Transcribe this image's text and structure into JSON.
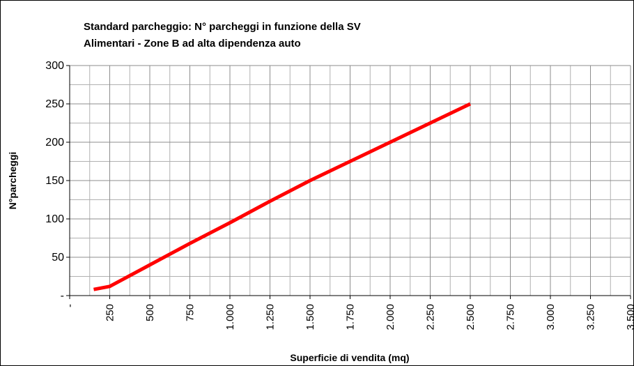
{
  "chart_data": {
    "type": "line",
    "title": "Standard parcheggio: N° parcheggi in funzione della SV",
    "subtitle": "Alimentari - Zone B ad alta dipendenza auto",
    "xlabel": "Superficie di vendita (mq)",
    "ylabel": "N°parcheggi",
    "x": [
      150,
      250,
      500,
      750,
      1000,
      1250,
      1500,
      1750,
      2000,
      2250,
      2500
    ],
    "series": [
      {
        "name": "N°parcheggi",
        "color": "#ff0000",
        "values": [
          8,
          12,
          40,
          68,
          95,
          123,
          150,
          175,
          200,
          225,
          250
        ]
      }
    ],
    "xlim": [
      0,
      3500
    ],
    "xticks": [
      {
        "value": 0,
        "label": "-"
      },
      250,
      500,
      750,
      {
        "value": 1000,
        "label": "1.000"
      },
      {
        "value": 1250,
        "label": "1.250"
      },
      {
        "value": 1500,
        "label": "1.500"
      },
      {
        "value": 1750,
        "label": "1.750"
      },
      {
        "value": 2000,
        "label": "2.000"
      },
      {
        "value": 2250,
        "label": "2.250"
      },
      {
        "value": 2500,
        "label": "2.500"
      },
      {
        "value": 2750,
        "label": "2.750"
      },
      {
        "value": 3000,
        "label": "3.000"
      },
      {
        "value": 3250,
        "label": "3.250"
      },
      {
        "value": 3500,
        "label": "3.500"
      }
    ],
    "ylim": [
      0,
      300
    ],
    "yticks": [
      {
        "value": 0,
        "label": "-"
      },
      50,
      100,
      150,
      200,
      250,
      300
    ],
    "grid": true
  }
}
